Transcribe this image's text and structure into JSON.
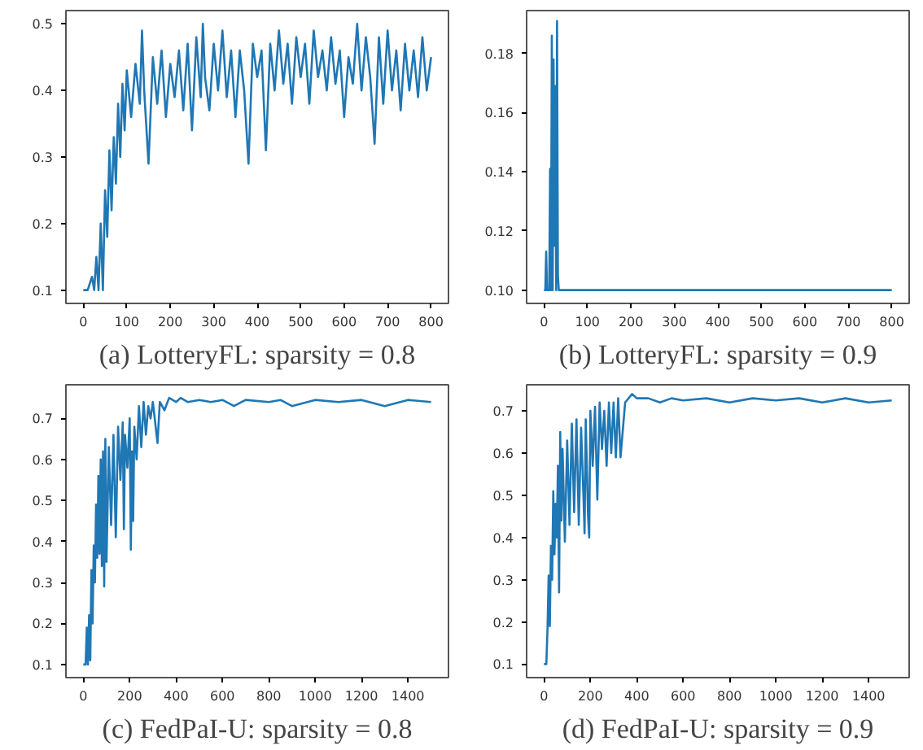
{
  "chart_data": [
    {
      "type": "line",
      "xlabel": "(a) LotteryFL: sparsity = 0.8",
      "xlim": [
        -40,
        840
      ],
      "ylim": [
        0.08,
        0.52
      ],
      "xticks": [
        0,
        100,
        200,
        300,
        400,
        500,
        600,
        700,
        800
      ],
      "yticks": [
        0.1,
        0.2,
        0.3,
        0.4,
        0.5
      ],
      "grid": false,
      "series": [
        {
          "color": "#1f77b4",
          "x": [
            0,
            10,
            20,
            25,
            30,
            35,
            40,
            45,
            50,
            55,
            60,
            65,
            70,
            75,
            80,
            85,
            90,
            95,
            100,
            110,
            120,
            130,
            135,
            140,
            150,
            160,
            170,
            180,
            190,
            200,
            210,
            220,
            230,
            240,
            250,
            260,
            270,
            275,
            280,
            290,
            300,
            310,
            320,
            330,
            340,
            350,
            360,
            370,
            380,
            390,
            400,
            410,
            420,
            430,
            440,
            450,
            460,
            470,
            480,
            490,
            500,
            510,
            520,
            530,
            540,
            550,
            560,
            570,
            580,
            590,
            600,
            610,
            620,
            630,
            640,
            650,
            660,
            670,
            680,
            690,
            700,
            710,
            720,
            730,
            740,
            750,
            760,
            770,
            780,
            790,
            800
          ],
          "values": [
            0.1,
            0.1,
            0.12,
            0.1,
            0.15,
            0.1,
            0.2,
            0.1,
            0.25,
            0.18,
            0.31,
            0.22,
            0.33,
            0.26,
            0.38,
            0.3,
            0.41,
            0.34,
            0.43,
            0.36,
            0.44,
            0.38,
            0.49,
            0.4,
            0.29,
            0.45,
            0.38,
            0.46,
            0.36,
            0.44,
            0.39,
            0.46,
            0.37,
            0.47,
            0.34,
            0.48,
            0.39,
            0.5,
            0.42,
            0.37,
            0.47,
            0.4,
            0.49,
            0.39,
            0.46,
            0.36,
            0.46,
            0.4,
            0.29,
            0.47,
            0.42,
            0.46,
            0.31,
            0.47,
            0.4,
            0.49,
            0.41,
            0.47,
            0.38,
            0.48,
            0.42,
            0.47,
            0.38,
            0.49,
            0.42,
            0.46,
            0.4,
            0.48,
            0.41,
            0.46,
            0.36,
            0.45,
            0.41,
            0.5,
            0.4,
            0.48,
            0.42,
            0.32,
            0.48,
            0.38,
            0.49,
            0.4,
            0.46,
            0.37,
            0.47,
            0.4,
            0.46,
            0.39,
            0.48,
            0.4,
            0.45
          ]
        }
      ]
    },
    {
      "type": "line",
      "xlabel": "(b) LotteryFL: sparsity = 0.9",
      "xlim": [
        -40,
        840
      ],
      "ylim": [
        0.0955,
        0.1945
      ],
      "xticks": [
        0,
        100,
        200,
        300,
        400,
        500,
        600,
        700,
        800
      ],
      "yticks": [
        {
          "value": 0.1,
          "label": "0.10"
        },
        0.12,
        0.14,
        0.16,
        0.18
      ],
      "grid": false,
      "series": [
        {
          "color": "#1f77b4",
          "x": [
            0,
            3,
            5,
            7,
            12,
            14,
            16,
            18,
            20,
            22,
            24,
            26,
            28,
            30,
            32,
            34,
            800
          ],
          "values": [
            0.1,
            0.1,
            0.113,
            0.1,
            0.1,
            0.141,
            0.1,
            0.186,
            0.1,
            0.178,
            0.115,
            0.169,
            0.1,
            0.191,
            0.105,
            0.1,
            0.1
          ]
        }
      ]
    },
    {
      "type": "line",
      "xlabel": "(c) FedPaI-U: sparsity = 0.8",
      "xlim": [
        -75,
        1575
      ],
      "ylim": [
        0.068,
        0.782
      ],
      "xticks": [
        0,
        200,
        400,
        600,
        800,
        1000,
        1200,
        1400
      ],
      "yticks": [
        0.1,
        0.2,
        0.3,
        0.4,
        0.5,
        0.6,
        0.7
      ],
      "grid": false,
      "series": [
        {
          "color": "#1f77b4",
          "x": [
            0,
            10,
            15,
            20,
            25,
            30,
            35,
            40,
            45,
            50,
            55,
            60,
            65,
            70,
            75,
            80,
            85,
            90,
            95,
            100,
            110,
            120,
            130,
            140,
            150,
            160,
            170,
            175,
            180,
            190,
            200,
            205,
            210,
            215,
            220,
            230,
            240,
            250,
            260,
            270,
            280,
            290,
            300,
            320,
            330,
            350,
            370,
            400,
            420,
            450,
            500,
            550,
            600,
            650,
            700,
            800,
            850,
            900,
            1000,
            1100,
            1200,
            1300,
            1400,
            1500
          ],
          "values": [
            0.1,
            0.1,
            0.19,
            0.1,
            0.22,
            0.11,
            0.33,
            0.2,
            0.39,
            0.3,
            0.49,
            0.36,
            0.56,
            0.37,
            0.6,
            0.34,
            0.62,
            0.29,
            0.65,
            0.35,
            0.63,
            0.44,
            0.66,
            0.41,
            0.68,
            0.55,
            0.69,
            0.43,
            0.66,
            0.58,
            0.7,
            0.38,
            0.62,
            0.45,
            0.68,
            0.6,
            0.73,
            0.63,
            0.74,
            0.66,
            0.73,
            0.7,
            0.74,
            0.64,
            0.74,
            0.72,
            0.75,
            0.74,
            0.75,
            0.74,
            0.745,
            0.74,
            0.745,
            0.73,
            0.745,
            0.74,
            0.745,
            0.73,
            0.745,
            0.74,
            0.745,
            0.73,
            0.745,
            0.74
          ]
        }
      ]
    },
    {
      "type": "line",
      "xlabel": "(d) FedPaI-U: sparsity = 0.9",
      "xlim": [
        -75,
        1575
      ],
      "ylim": [
        0.068,
        0.762
      ],
      "xticks": [
        0,
        200,
        400,
        600,
        800,
        1000,
        1200,
        1400
      ],
      "yticks": [
        0.1,
        0.2,
        0.3,
        0.4,
        0.5,
        0.6,
        0.7
      ],
      "grid": false,
      "series": [
        {
          "color": "#1f77b4",
          "x": [
            0,
            10,
            15,
            20,
            25,
            30,
            35,
            40,
            45,
            50,
            55,
            60,
            65,
            70,
            75,
            80,
            90,
            100,
            110,
            120,
            130,
            140,
            150,
            160,
            170,
            175,
            180,
            190,
            195,
            200,
            210,
            220,
            230,
            240,
            250,
            260,
            270,
            280,
            290,
            300,
            310,
            320,
            330,
            350,
            380,
            400,
            450,
            500,
            550,
            600,
            700,
            800,
            900,
            1000,
            1100,
            1200,
            1300,
            1400,
            1500
          ],
          "values": [
            0.1,
            0.1,
            0.18,
            0.31,
            0.19,
            0.38,
            0.3,
            0.51,
            0.36,
            0.48,
            0.4,
            0.57,
            0.27,
            0.65,
            0.44,
            0.61,
            0.39,
            0.63,
            0.43,
            0.67,
            0.46,
            0.68,
            0.43,
            0.66,
            0.5,
            0.41,
            0.68,
            0.45,
            0.4,
            0.7,
            0.57,
            0.71,
            0.49,
            0.72,
            0.61,
            0.7,
            0.57,
            0.72,
            0.6,
            0.72,
            0.59,
            0.73,
            0.59,
            0.72,
            0.74,
            0.73,
            0.73,
            0.72,
            0.73,
            0.725,
            0.73,
            0.72,
            0.73,
            0.725,
            0.73,
            0.72,
            0.73,
            0.72,
            0.725
          ]
        }
      ]
    }
  ]
}
